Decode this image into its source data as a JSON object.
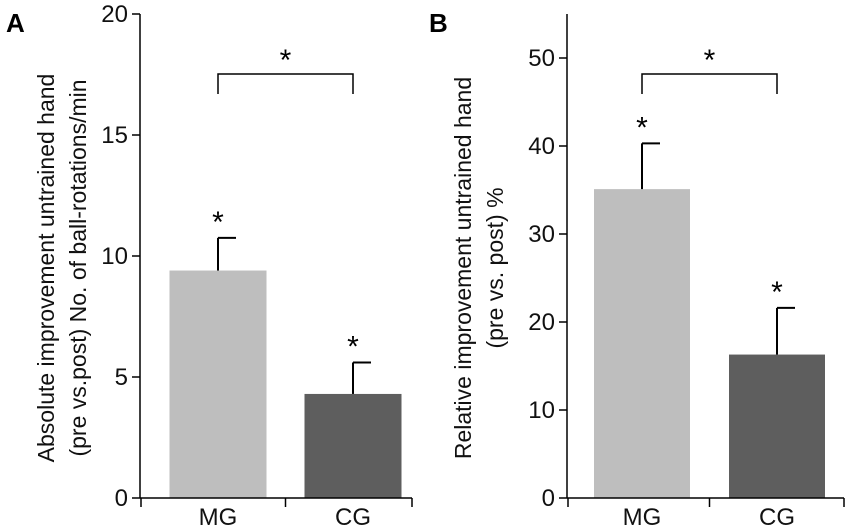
{
  "chart_data": [
    {
      "type": "bar",
      "panel_label": "A",
      "categories": [
        "MG",
        "CG"
      ],
      "values": [
        9.4,
        4.3
      ],
      "errors": [
        1.35,
        1.3
      ],
      "bar_colors": [
        "#bebebe",
        "#5e5e5e"
      ],
      "ylim": [
        0,
        20
      ],
      "yticks": [
        "0",
        "5",
        "10",
        "15",
        "20"
      ],
      "ylabel": [
        "Absolute improvement untrained hand",
        "(pre vs.post) No. of ball-rotations/min"
      ],
      "bar_marks": [
        "*",
        "*"
      ],
      "comparison_mark": "*"
    },
    {
      "type": "bar",
      "panel_label": "B",
      "categories": [
        "MG",
        "CG"
      ],
      "values": [
        35.1,
        16.3
      ],
      "errors": [
        5.2,
        5.3
      ],
      "bar_colors": [
        "#bebebe",
        "#5e5e5e"
      ],
      "ylim": [
        0,
        55
      ],
      "yticks": [
        "0",
        "10",
        "20",
        "30",
        "40",
        "50"
      ],
      "ylabel": [
        "Relative improvement untrained hand",
        "(pre vs. post) %"
      ],
      "bar_marks": [
        "*",
        "*"
      ],
      "comparison_mark": "*"
    }
  ]
}
